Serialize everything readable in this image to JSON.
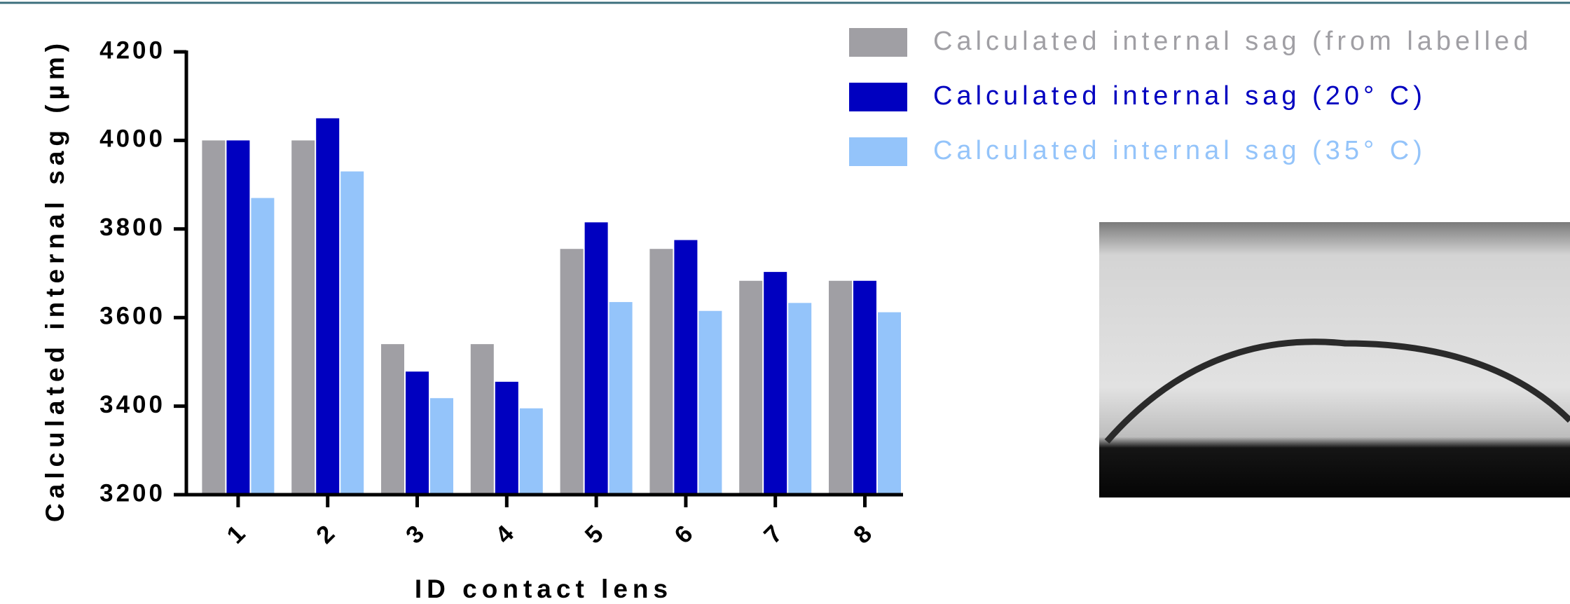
{
  "chart_data": {
    "type": "bar",
    "y_label": "Calculated internal sag (µm)",
    "x_label": "ID contact lens",
    "categories": [
      "1",
      "2",
      "3",
      "4",
      "5",
      "6",
      "7",
      "8"
    ],
    "series": [
      {
        "name": "Calculated internal sag (from labelled",
        "color": "#a09fa4",
        "values": [
          4000,
          4000,
          3540,
          3540,
          3755,
          3755,
          3683,
          3683
        ]
      },
      {
        "name": "Calculated internal sag (20° C)",
        "color": "#0000c0",
        "values": [
          4000,
          4050,
          3478,
          3455,
          3815,
          3775,
          3703,
          3683
        ]
      },
      {
        "name": "Calculated internal sag (35° C)",
        "color": "#94c4fa",
        "values": [
          3870,
          3930,
          3418,
          3395,
          3635,
          3615,
          3633,
          3612
        ]
      }
    ],
    "ylim": [
      3200,
      4200
    ],
    "yticks": [
      3200,
      3400,
      3600,
      3800,
      4000,
      4200
    ],
    "grid": false
  }
}
